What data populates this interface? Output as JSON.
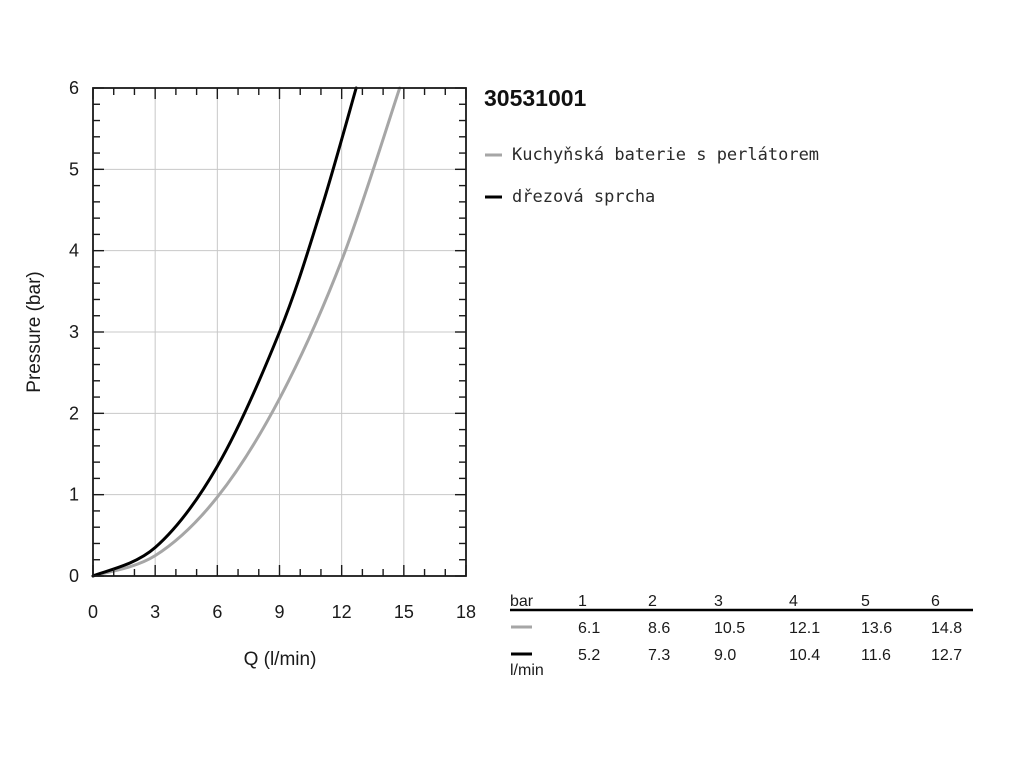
{
  "chart_data": {
    "type": "line",
    "title": "30531001",
    "xlabel": "Q (l/min)",
    "ylabel": "Pressure (bar)",
    "xlim": [
      0,
      18
    ],
    "ylim": [
      0,
      6
    ],
    "xticks": [
      "0",
      "3",
      "6",
      "9",
      "12",
      "15",
      "18"
    ],
    "yticks": [
      "0",
      "1",
      "2",
      "3",
      "4",
      "5",
      "6"
    ],
    "grid": true,
    "legend_position": "right",
    "series": [
      {
        "name": "Kuchyňská baterie s perlátorem",
        "color": "#a6a6a6",
        "points": [
          [
            0,
            0
          ],
          [
            3,
            0.25
          ],
          [
            6,
            0.97
          ],
          [
            9,
            2.18
          ],
          [
            12,
            3.88
          ],
          [
            14.8,
            6.0
          ]
        ]
      },
      {
        "name": "dřezová sprcha",
        "color": "#000000",
        "points": [
          [
            0,
            0
          ],
          [
            3,
            0.35
          ],
          [
            6,
            1.35
          ],
          [
            9,
            3.0
          ],
          [
            11,
            4.5
          ],
          [
            12.7,
            6.0
          ]
        ]
      }
    ]
  },
  "table": {
    "header_label": "bar",
    "footer_label": "l/min",
    "pressures": [
      "1",
      "2",
      "3",
      "4",
      "5",
      "6"
    ],
    "rows": [
      {
        "color": "#a6a6a6",
        "values": [
          "6.1",
          "8.6",
          "10.5",
          "12.1",
          "13.6",
          "14.8"
        ]
      },
      {
        "color": "#000000",
        "values": [
          "5.2",
          "7.3",
          "9.0",
          "10.4",
          "11.6",
          "12.7"
        ]
      }
    ]
  }
}
